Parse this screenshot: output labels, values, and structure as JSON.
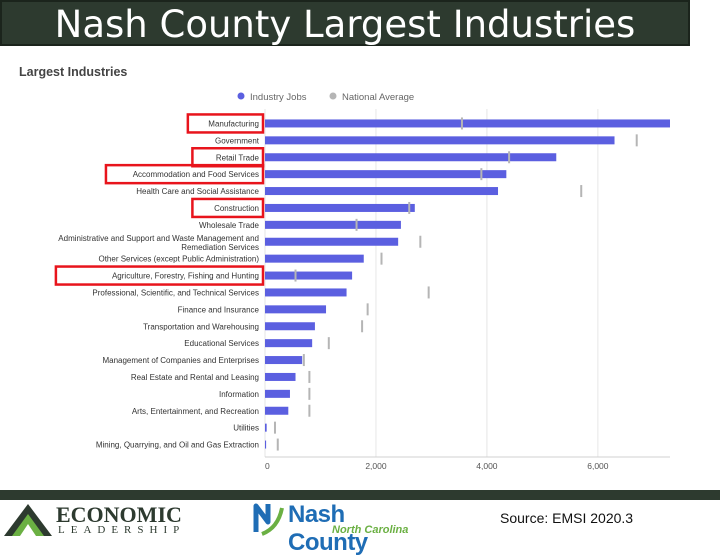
{
  "slide": {
    "title": "Nash County Largest Industries",
    "source": "Source: EMSI 2020.3"
  },
  "logos": {
    "left_top": "ECONOMIC",
    "left_bottom": "LEADERSHIP",
    "mid_name": "Nash County",
    "mid_sub": "North Carolina"
  },
  "colors": {
    "bar": "#5b5fe0",
    "marker": "#b5b5b5",
    "highlight": "#e8141c",
    "title_bg": "#2d3a2f"
  },
  "chart_data": {
    "type": "bar",
    "orientation": "horizontal",
    "title": "Largest Industries",
    "legend": [
      "Industry Jobs",
      "National Average"
    ],
    "legend_position": "top-right",
    "categories": [
      "Manufacturing",
      "Government",
      "Retail Trade",
      "Accommodation and Food Services",
      "Health Care and Social Assistance",
      "Construction",
      "Wholesale Trade",
      "Administrative and Support and Waste Management and Remediation Services",
      "Other Services (except Public Administration)",
      "Agriculture, Forestry, Fishing and Hunting",
      "Professional, Scientific, and Technical Services",
      "Finance and Insurance",
      "Transportation and Warehousing",
      "Educational Services",
      "Management of Companies and Enterprises",
      "Real Estate and Rental and Leasing",
      "Information",
      "Arts, Entertainment, and Recreation",
      "Utilities",
      "Mining, Quarrying, and Oil and Gas Extraction"
    ],
    "series": [
      {
        "name": "Industry Jobs",
        "values": [
          7300,
          6300,
          5250,
          4350,
          4200,
          2700,
          2450,
          2400,
          1780,
          1570,
          1470,
          1100,
          900,
          850,
          670,
          550,
          450,
          420,
          30,
          20
        ]
      },
      {
        "name": "National Average",
        "values": [
          3550,
          6700,
          4400,
          3900,
          5700,
          2600,
          1650,
          2800,
          2100,
          550,
          2950,
          1850,
          1750,
          1150,
          700,
          800,
          800,
          800,
          180,
          230
        ]
      }
    ],
    "highlighted": [
      "Manufacturing",
      "Retail Trade",
      "Accommodation and Food Services",
      "Construction",
      "Agriculture, Forestry, Fishing and Hunting"
    ],
    "xlim": [
      0,
      7300
    ],
    "xticks": [
      "0",
      "2,000",
      "4,000",
      "6,000"
    ],
    "xtick_values": [
      0,
      2000,
      4000,
      6000
    ],
    "grid": true
  }
}
